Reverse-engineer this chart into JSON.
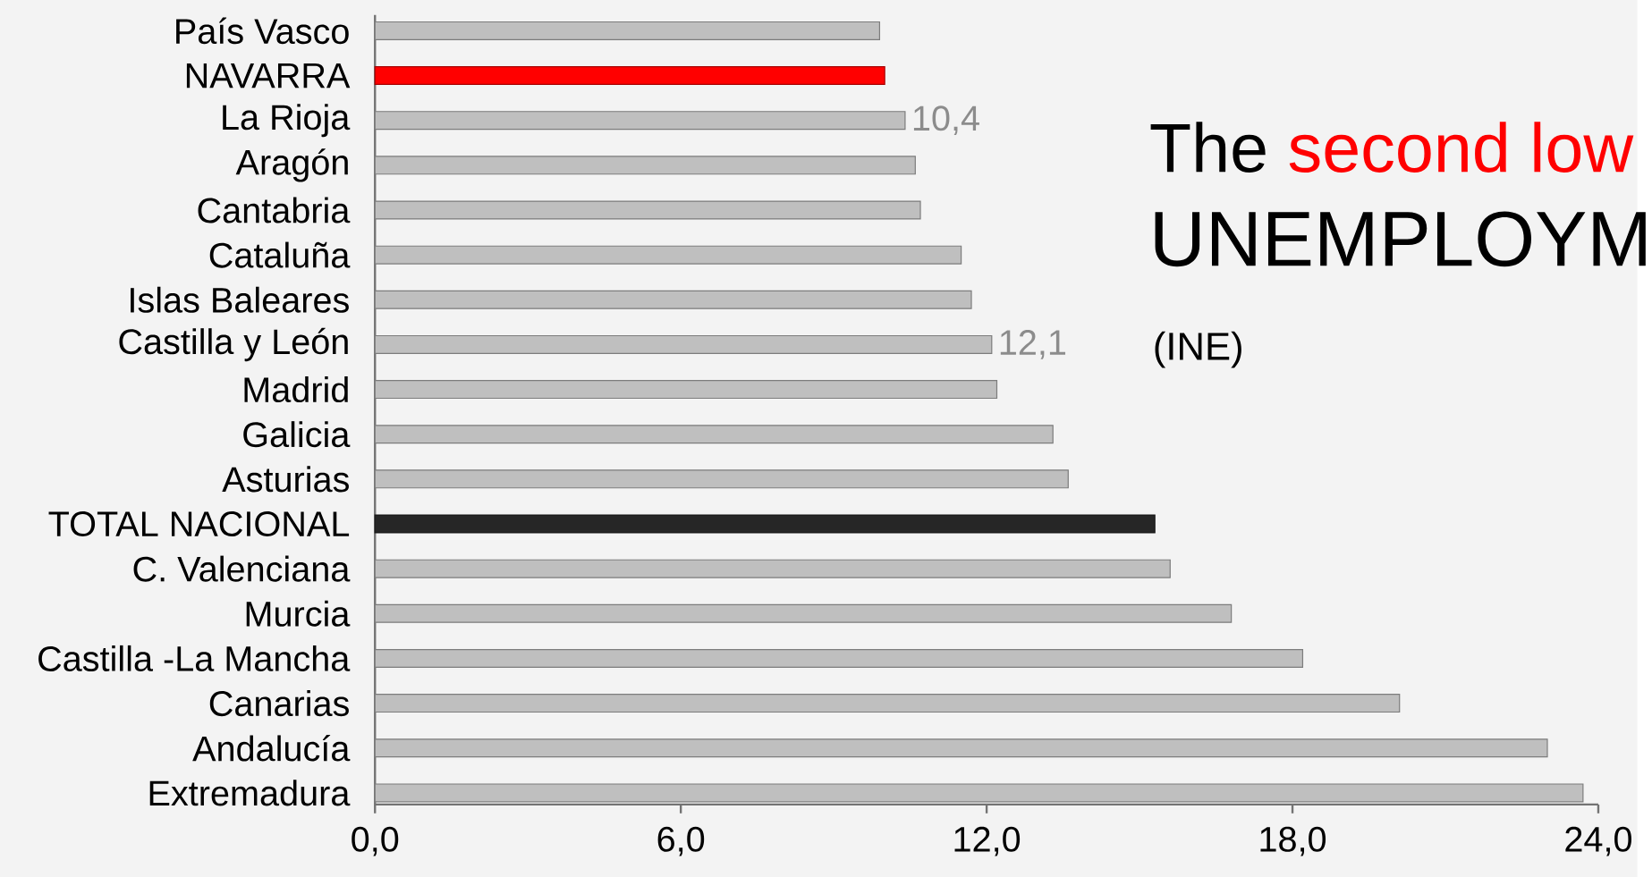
{
  "chart_data": {
    "type": "bar",
    "orientation": "horizontal",
    "title": "UNEMPLOYM",
    "annotations": [
      "The",
      "second low",
      "(INE)"
    ],
    "categories": [
      "País Vasco",
      "NAVARRA",
      "La Rioja",
      "Aragón",
      "Cantabria",
      "Cataluña",
      "Islas Baleares",
      "Castilla y León",
      "Madrid",
      "Galicia",
      "Asturias",
      "TOTAL NACIONAL",
      "C. Valenciana",
      "Murcia",
      "Castilla -La Mancha",
      "Canarias",
      "Andalucía",
      "Extremadura"
    ],
    "values": [
      9.9,
      10.0,
      10.4,
      10.6,
      10.7,
      11.5,
      11.7,
      12.1,
      12.2,
      13.3,
      13.6,
      15.3,
      15.6,
      16.8,
      18.2,
      20.1,
      23.0,
      23.7
    ],
    "colors": [
      "#bfbfbf",
      "#ff0000",
      "#bfbfbf",
      "#bfbfbf",
      "#bfbfbf",
      "#bfbfbf",
      "#bfbfbf",
      "#bfbfbf",
      "#bfbfbf",
      "#bfbfbf",
      "#bfbfbf",
      "#262626",
      "#bfbfbf",
      "#bfbfbf",
      "#bfbfbf",
      "#bfbfbf",
      "#bfbfbf",
      "#bfbfbf"
    ],
    "value_labels": [
      null,
      null,
      "10,4",
      null,
      null,
      null,
      null,
      "12,1",
      null,
      null,
      null,
      null,
      null,
      null,
      null,
      null,
      null,
      null
    ],
    "xlim": [
      0,
      24
    ],
    "xticks": [
      {
        "value": 0,
        "label": "0,0"
      },
      {
        "value": 6,
        "label": "6,0"
      },
      {
        "value": 12,
        "label": "12,0"
      },
      {
        "value": 18,
        "label": "18,0"
      },
      {
        "value": 24,
        "label": "24,0"
      }
    ]
  }
}
